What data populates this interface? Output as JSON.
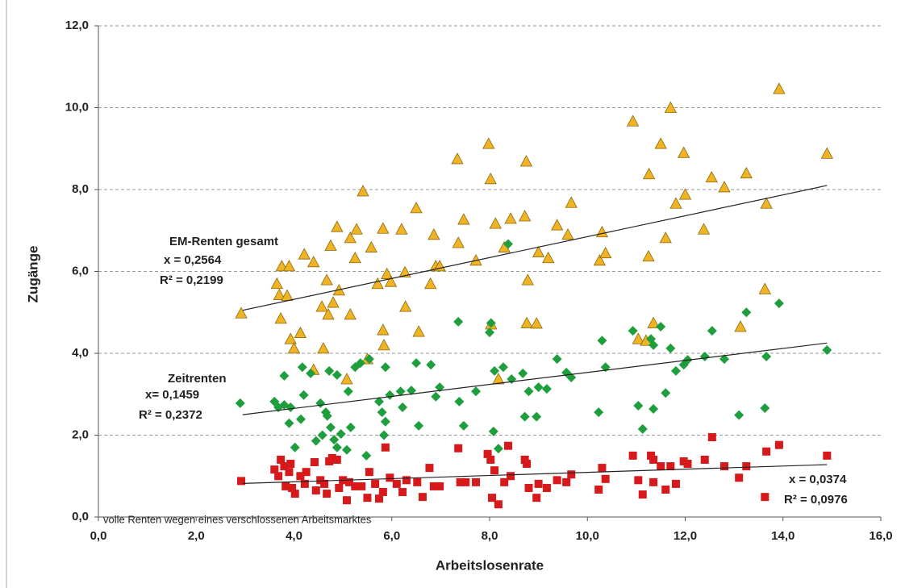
{
  "chart_data": {
    "type": "scatter",
    "x_label": "Arbeitslosenrate",
    "y_label": "Zugänge",
    "xlim": [
      0,
      16
    ],
    "ylim": [
      0,
      12
    ],
    "xticks": [
      {
        "value": 0,
        "label": "0,0"
      },
      {
        "value": 2,
        "label": "2,0"
      },
      {
        "value": 4,
        "label": "4,0"
      },
      {
        "value": 6,
        "label": "6,0"
      },
      {
        "value": 8,
        "label": "8,0"
      },
      {
        "value": 10,
        "label": "10,0"
      },
      {
        "value": 12,
        "label": "12,0"
      },
      {
        "value": 14,
        "label": "14,0"
      },
      {
        "value": 16,
        "label": "16,0"
      }
    ],
    "yticks": [
      {
        "value": 0,
        "label": "0,0"
      },
      {
        "value": 2,
        "label": "2,0"
      },
      {
        "value": 4,
        "label": "4,0"
      },
      {
        "value": 6,
        "label": "6,0"
      },
      {
        "value": 8,
        "label": "8,0"
      },
      {
        "value": 10,
        "label": "10,0"
      },
      {
        "value": 12,
        "label": "12,0"
      }
    ],
    "grid": true,
    "series": [
      {
        "name": "EM-Renten gesamt",
        "marker": "triangle",
        "color": "#f0b323",
        "annotations": [
          "x = 0,2564",
          "R² = 0,2199"
        ],
        "x": [
          2.92,
          3.65,
          3.75,
          3.9,
          3.7,
          3.73,
          3.86,
          3.93,
          4.0,
          4.13,
          4.21,
          4.4,
          4.57,
          4.6,
          4.67,
          4.7,
          4.75,
          4.8,
          4.88,
          4.92,
          5.15,
          5.15,
          5.25,
          5.28,
          5.41,
          5.58,
          5.71,
          5.82,
          5.82,
          5.84,
          5.9,
          5.98,
          6.2,
          6.27,
          6.28,
          6.5,
          6.55,
          6.79,
          6.86,
          6.9,
          6.98,
          7.34,
          7.36,
          7.47,
          7.72,
          7.98,
          8.02,
          8.03,
          8.12,
          8.18,
          8.3,
          8.43,
          8.72,
          8.75,
          8.76,
          8.78,
          8.96,
          9.0,
          9.2,
          9.38,
          9.6,
          9.67,
          10.25,
          10.3,
          10.37,
          10.93,
          11.04,
          11.2,
          11.25,
          11.26,
          11.35,
          11.5,
          11.6,
          11.7,
          11.81,
          11.97,
          12.0,
          12.38,
          12.54,
          12.8,
          13.13,
          13.25,
          13.63,
          13.66,
          13.92,
          14.9,
          4.4,
          5.08,
          5.5
        ],
        "y": [
          4.98,
          5.7,
          6.13,
          6.13,
          5.43,
          4.85,
          5.41,
          4.35,
          4.12,
          4.5,
          6.42,
          6.23,
          5.14,
          4.12,
          5.79,
          4.95,
          6.63,
          5.24,
          7.09,
          5.54,
          6.82,
          4.95,
          6.33,
          7.03,
          7.96,
          6.59,
          5.7,
          7.05,
          4.57,
          4.2,
          5.94,
          5.75,
          7.03,
          5.98,
          5.14,
          7.55,
          4.53,
          5.7,
          6.9,
          6.13,
          6.13,
          8.75,
          6.7,
          7.27,
          6.27,
          9.12,
          8.26,
          4.71,
          7.17,
          3.37,
          6.59,
          7.29,
          7.35,
          8.69,
          4.74,
          5.79,
          4.73,
          6.47,
          6.33,
          7.13,
          6.9,
          7.68,
          6.27,
          6.96,
          6.45,
          9.67,
          4.35,
          4.31,
          6.37,
          8.38,
          4.74,
          9.12,
          6.82,
          10.0,
          7.66,
          8.9,
          7.88,
          7.03,
          8.3,
          8.06,
          4.65,
          8.4,
          5.57,
          7.66,
          10.46,
          8.88,
          3.6,
          3.37,
          3.86
        ],
        "trendline": {
          "x": [
            2.95,
            14.9
          ],
          "y": [
            5.05,
            8.1
          ]
        }
      },
      {
        "name": "Zeitrenten",
        "marker": "diamond",
        "color": "#1e9e3c",
        "annotations": [
          "x= 0,1459",
          "R² = 0,2372"
        ],
        "x": [
          2.9,
          3.6,
          3.68,
          3.8,
          3.93,
          3.8,
          3.9,
          4.02,
          4.14,
          4.17,
          4.2,
          4.34,
          4.45,
          4.54,
          4.58,
          4.65,
          4.68,
          4.72,
          4.75,
          4.82,
          4.88,
          4.88,
          4.96,
          5.08,
          5.11,
          5.16,
          5.25,
          5.36,
          5.48,
          5.54,
          5.74,
          5.8,
          5.84,
          5.87,
          5.87,
          5.96,
          6.18,
          6.22,
          6.4,
          6.5,
          6.55,
          6.8,
          6.9,
          6.98,
          7.36,
          7.38,
          7.47,
          7.72,
          8.0,
          8.03,
          8.08,
          8.1,
          8.18,
          8.28,
          8.38,
          8.45,
          8.68,
          8.72,
          8.8,
          8.96,
          9.0,
          9.17,
          9.38,
          9.57,
          9.67,
          10.23,
          10.3,
          10.37,
          10.93,
          11.04,
          11.13,
          11.3,
          11.35,
          11.35,
          11.5,
          11.6,
          11.7,
          11.81,
          11.97,
          12.05,
          12.4,
          12.55,
          12.8,
          13.1,
          13.25,
          13.63,
          13.66,
          13.92,
          14.9
        ],
        "y": [
          2.78,
          2.82,
          2.68,
          2.74,
          2.68,
          3.45,
          2.29,
          1.7,
          2.39,
          3.66,
          2.98,
          3.51,
          1.86,
          2.78,
          2.0,
          2.56,
          2.47,
          3.57,
          2.19,
          1.89,
          3.47,
          1.7,
          2.03,
          1.64,
          3.07,
          2.19,
          3.66,
          3.76,
          1.5,
          3.86,
          2.82,
          2.56,
          2.0,
          2.33,
          3.66,
          2.98,
          3.07,
          2.68,
          3.09,
          3.76,
          2.23,
          3.72,
          2.94,
          3.17,
          4.77,
          2.82,
          2.23,
          3.07,
          4.51,
          4.74,
          2.09,
          3.57,
          1.67,
          3.66,
          6.67,
          3.37,
          3.51,
          2.45,
          3.07,
          2.45,
          3.17,
          3.13,
          3.86,
          3.53,
          3.41,
          2.56,
          4.31,
          3.66,
          4.55,
          2.72,
          2.15,
          4.35,
          4.2,
          2.64,
          4.65,
          3.03,
          4.12,
          3.57,
          3.72,
          3.84,
          3.92,
          4.55,
          3.86,
          2.49,
          5.0,
          2.66,
          3.92,
          5.22,
          4.08
        ],
        "trendline": {
          "x": [
            2.95,
            14.9
          ],
          "y": [
            2.5,
            4.25
          ]
        }
      },
      {
        "name": "volle Renten wegen eines verschlossenen Arbeitsmarktes",
        "marker": "square",
        "color": "#d7191c",
        "annotations": [
          "x = 0,0374",
          "R² = 0,0976"
        ],
        "x": [
          2.92,
          3.6,
          3.68,
          3.73,
          3.8,
          3.83,
          3.9,
          3.96,
          3.93,
          4.02,
          4.13,
          4.22,
          4.25,
          4.42,
          4.45,
          4.54,
          4.62,
          4.67,
          4.72,
          4.78,
          4.88,
          4.92,
          5.0,
          5.08,
          5.13,
          5.25,
          5.38,
          5.5,
          5.54,
          5.66,
          5.74,
          5.82,
          5.87,
          5.96,
          6.1,
          6.22,
          6.3,
          6.52,
          6.63,
          6.77,
          6.86,
          6.98,
          7.36,
          7.4,
          7.51,
          7.72,
          7.96,
          8.02,
          8.05,
          8.1,
          8.18,
          8.3,
          8.38,
          8.43,
          8.72,
          8.76,
          8.8,
          8.96,
          9.0,
          9.17,
          9.38,
          9.57,
          9.67,
          10.23,
          10.3,
          10.37,
          10.93,
          11.04,
          11.13,
          11.3,
          11.35,
          11.35,
          11.5,
          11.6,
          11.7,
          11.81,
          11.97,
          12.05,
          12.4,
          12.55,
          12.8,
          13.1,
          13.25,
          13.63,
          13.66,
          13.92,
          14.9
        ],
        "y": [
          0.88,
          1.16,
          1.0,
          1.4,
          1.24,
          0.75,
          1.1,
          0.71,
          1.3,
          0.57,
          1.0,
          0.81,
          1.1,
          1.34,
          0.65,
          0.9,
          0.81,
          0.57,
          1.36,
          1.44,
          1.4,
          0.71,
          0.9,
          0.41,
          0.85,
          0.75,
          0.75,
          0.47,
          1.1,
          0.81,
          0.45,
          0.61,
          1.7,
          0.96,
          0.81,
          0.61,
          0.9,
          0.85,
          0.49,
          1.2,
          0.75,
          0.75,
          1.68,
          0.85,
          0.85,
          0.85,
          1.54,
          1.4,
          0.47,
          1.14,
          0.31,
          0.85,
          1.74,
          1.0,
          1.4,
          1.3,
          0.71,
          0.47,
          0.81,
          0.71,
          0.9,
          0.85,
          1.04,
          0.67,
          1.2,
          0.93,
          1.5,
          0.9,
          0.55,
          1.5,
          1.4,
          0.85,
          1.24,
          0.67,
          1.24,
          0.81,
          1.36,
          1.3,
          1.4,
          1.95,
          1.24,
          0.96,
          1.24,
          0.49,
          1.6,
          1.76,
          1.5
        ],
        "trendline": {
          "x": [
            2.95,
            14.9
          ],
          "y": [
            0.82,
            1.28
          ]
        }
      }
    ]
  }
}
